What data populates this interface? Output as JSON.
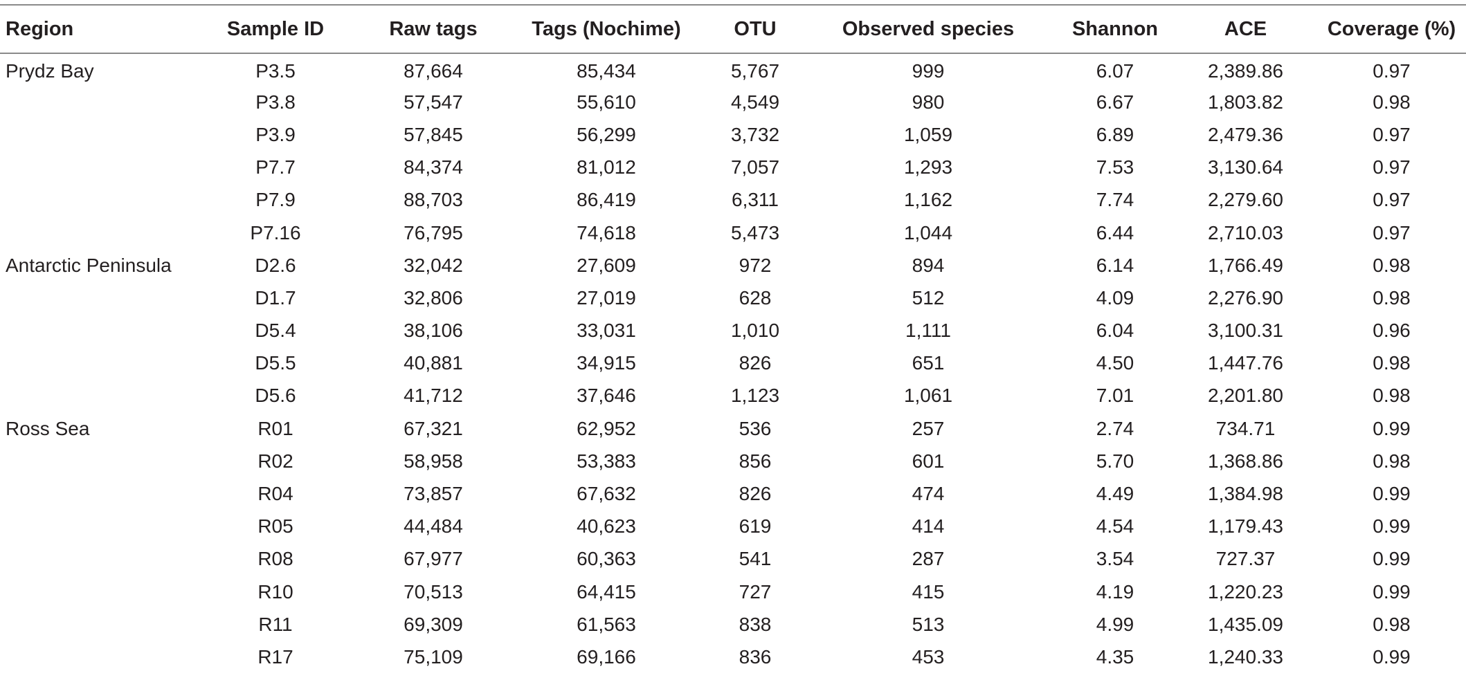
{
  "table": {
    "headers": {
      "region": "Region",
      "sample_id": "Sample ID",
      "raw_tags": "Raw tags",
      "tags_nochime": "Tags (Nochime)",
      "otu": "OTU",
      "observed_species": "Observed species",
      "shannon": "Shannon",
      "ace": "ACE",
      "coverage": "Coverage (%)"
    },
    "rows": [
      {
        "region": "Prydz Bay",
        "sample_id": "P3.5",
        "raw_tags": "87,664",
        "tags_nochime": "85,434",
        "otu": "5,767",
        "observed_species": "999",
        "shannon": "6.07",
        "ace": "2,389.86",
        "coverage": "0.97"
      },
      {
        "region": "",
        "sample_id": "P3.8",
        "raw_tags": "57,547",
        "tags_nochime": "55,610",
        "otu": "4,549",
        "observed_species": "980",
        "shannon": "6.67",
        "ace": "1,803.82",
        "coverage": "0.98"
      },
      {
        "region": "",
        "sample_id": "P3.9",
        "raw_tags": "57,845",
        "tags_nochime": "56,299",
        "otu": "3,732",
        "observed_species": "1,059",
        "shannon": "6.89",
        "ace": "2,479.36",
        "coverage": "0.97"
      },
      {
        "region": "",
        "sample_id": "P7.7",
        "raw_tags": "84,374",
        "tags_nochime": "81,012",
        "otu": "7,057",
        "observed_species": "1,293",
        "shannon": "7.53",
        "ace": "3,130.64",
        "coverage": "0.97"
      },
      {
        "region": "",
        "sample_id": "P7.9",
        "raw_tags": "88,703",
        "tags_nochime": "86,419",
        "otu": "6,311",
        "observed_species": "1,162",
        "shannon": "7.74",
        "ace": "2,279.60",
        "coverage": "0.97"
      },
      {
        "region": "",
        "sample_id": "P7.16",
        "raw_tags": "76,795",
        "tags_nochime": "74,618",
        "otu": "5,473",
        "observed_species": "1,044",
        "shannon": "6.44",
        "ace": "2,710.03",
        "coverage": "0.97"
      },
      {
        "region": "Antarctic Peninsula",
        "sample_id": "D2.6",
        "raw_tags": "32,042",
        "tags_nochime": "27,609",
        "otu": "972",
        "observed_species": "894",
        "shannon": "6.14",
        "ace": "1,766.49",
        "coverage": "0.98"
      },
      {
        "region": "",
        "sample_id": "D1.7",
        "raw_tags": "32,806",
        "tags_nochime": "27,019",
        "otu": "628",
        "observed_species": "512",
        "shannon": "4.09",
        "ace": "2,276.90",
        "coverage": "0.98"
      },
      {
        "region": "",
        "sample_id": "D5.4",
        "raw_tags": "38,106",
        "tags_nochime": "33,031",
        "otu": "1,010",
        "observed_species": "1,111",
        "shannon": "6.04",
        "ace": "3,100.31",
        "coverage": "0.96"
      },
      {
        "region": "",
        "sample_id": "D5.5",
        "raw_tags": "40,881",
        "tags_nochime": "34,915",
        "otu": "826",
        "observed_species": "651",
        "shannon": "4.50",
        "ace": "1,447.76",
        "coverage": "0.98"
      },
      {
        "region": "",
        "sample_id": "D5.6",
        "raw_tags": "41,712",
        "tags_nochime": "37,646",
        "otu": "1,123",
        "observed_species": "1,061",
        "shannon": "7.01",
        "ace": "2,201.80",
        "coverage": "0.98"
      },
      {
        "region": "Ross Sea",
        "sample_id": "R01",
        "raw_tags": "67,321",
        "tags_nochime": "62,952",
        "otu": "536",
        "observed_species": "257",
        "shannon": "2.74",
        "ace": "734.71",
        "coverage": "0.99"
      },
      {
        "region": "",
        "sample_id": "R02",
        "raw_tags": "58,958",
        "tags_nochime": "53,383",
        "otu": "856",
        "observed_species": "601",
        "shannon": "5.70",
        "ace": "1,368.86",
        "coverage": "0.98"
      },
      {
        "region": "",
        "sample_id": "R04",
        "raw_tags": "73,857",
        "tags_nochime": "67,632",
        "otu": "826",
        "observed_species": "474",
        "shannon": "4.49",
        "ace": "1,384.98",
        "coverage": "0.99"
      },
      {
        "region": "",
        "sample_id": "R05",
        "raw_tags": "44,484",
        "tags_nochime": "40,623",
        "otu": "619",
        "observed_species": "414",
        "shannon": "4.54",
        "ace": "1,179.43",
        "coverage": "0.99"
      },
      {
        "region": "",
        "sample_id": "R08",
        "raw_tags": "67,977",
        "tags_nochime": "60,363",
        "otu": "541",
        "observed_species": "287",
        "shannon": "3.54",
        "ace": "727.37",
        "coverage": "0.99"
      },
      {
        "region": "",
        "sample_id": "R10",
        "raw_tags": "70,513",
        "tags_nochime": "64,415",
        "otu": "727",
        "observed_species": "415",
        "shannon": "4.19",
        "ace": "1,220.23",
        "coverage": "0.99"
      },
      {
        "region": "",
        "sample_id": "R11",
        "raw_tags": "69,309",
        "tags_nochime": "61,563",
        "otu": "838",
        "observed_species": "513",
        "shannon": "4.99",
        "ace": "1,435.09",
        "coverage": "0.98"
      },
      {
        "region": "",
        "sample_id": "R17",
        "raw_tags": "75,109",
        "tags_nochime": "69,166",
        "otu": "836",
        "observed_species": "453",
        "shannon": "4.35",
        "ace": "1,240.33",
        "coverage": "0.99"
      }
    ]
  }
}
